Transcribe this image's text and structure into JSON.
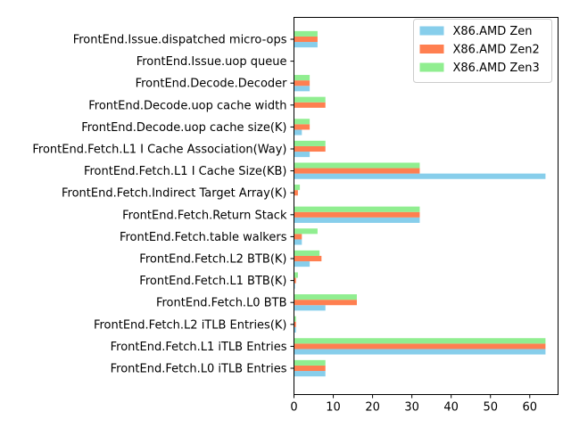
{
  "chart_data": {
    "type": "bar",
    "orientation": "horizontal",
    "categories": [
      "FrontEnd.Issue.dispatched micro-ops",
      "FrontEnd.Issue.uop queue",
      "FrontEnd.Decode.Decoder",
      "FrontEnd.Decode.uop cache width",
      "FrontEnd.Decode.uop cache size(K)",
      "FrontEnd.Fetch.L1 I Cache Association(Way)",
      "FrontEnd.Fetch.L1 I Cache Size(KB)",
      "FrontEnd.Fetch.Indirect Target Array(K)",
      "FrontEnd.Fetch.Return Stack",
      "FrontEnd.Fetch.table walkers",
      "FrontEnd.Fetch.L2 BTB(K)",
      "FrontEnd.Fetch.L1 BTB(K)",
      "FrontEnd.Fetch.L0 BTB",
      "FrontEnd.Fetch.L2 iTLB Entries(K)",
      "FrontEnd.Fetch.L1 iTLB Entries",
      "FrontEnd.Fetch.L0 iTLB Entries"
    ],
    "series": [
      {
        "name": "X86.AMD Zen",
        "color": "#87ceeb",
        "values": [
          6,
          0,
          4,
          0,
          2,
          4,
          64,
          0,
          32,
          2,
          4,
          0.256,
          8,
          0.512,
          64,
          8
        ]
      },
      {
        "name": "X86.AMD Zen2",
        "color": "#ff7f50",
        "values": [
          6,
          0,
          4,
          8,
          4,
          8,
          32,
          1,
          32,
          2,
          7,
          0.512,
          16,
          0.512,
          64,
          8
        ]
      },
      {
        "name": "X86.AMD Zen3",
        "color": "#90ee90",
        "values": [
          6,
          0,
          4,
          8,
          4,
          8,
          32,
          1.5,
          32,
          6,
          6.5,
          1,
          16,
          0.512,
          64,
          8
        ]
      }
    ],
    "xticks": [
      0,
      10,
      20,
      30,
      40,
      50,
      60
    ],
    "xlim": [
      0,
      67.2
    ],
    "grid": false,
    "legend_position": "top-right"
  }
}
